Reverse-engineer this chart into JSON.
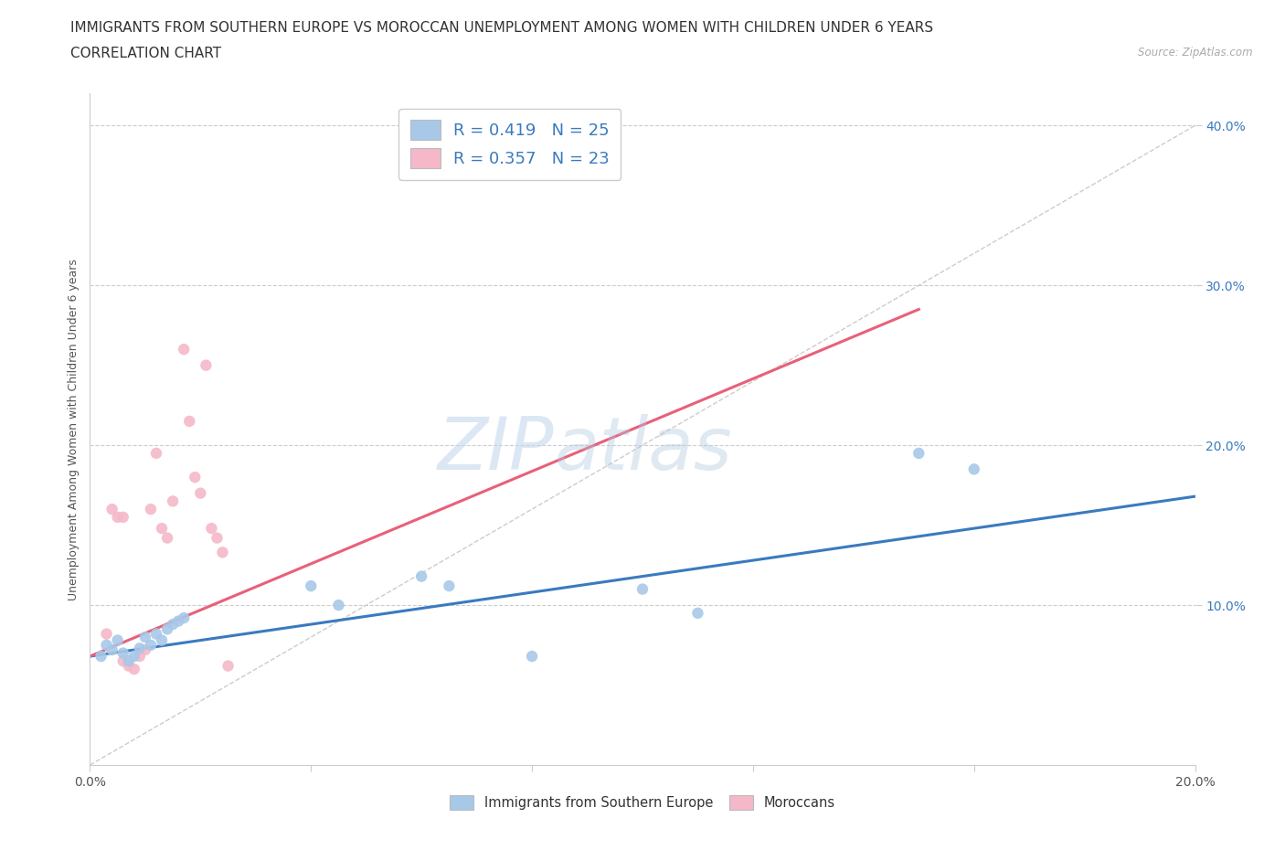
{
  "title_line1": "IMMIGRANTS FROM SOUTHERN EUROPE VS MOROCCAN UNEMPLOYMENT AMONG WOMEN WITH CHILDREN UNDER 6 YEARS",
  "title_line2": "CORRELATION CHART",
  "source": "Source: ZipAtlas.com",
  "ylabel": "Unemployment Among Women with Children Under 6 years",
  "xlim": [
    0.0,
    0.2
  ],
  "ylim": [
    0.0,
    0.42
  ],
  "blue_color": "#a8c8e8",
  "pink_color": "#f4b8c8",
  "blue_scatter": [
    [
      0.002,
      0.068
    ],
    [
      0.003,
      0.075
    ],
    [
      0.004,
      0.072
    ],
    [
      0.005,
      0.078
    ],
    [
      0.006,
      0.07
    ],
    [
      0.007,
      0.065
    ],
    [
      0.008,
      0.068
    ],
    [
      0.009,
      0.073
    ],
    [
      0.01,
      0.08
    ],
    [
      0.011,
      0.075
    ],
    [
      0.012,
      0.082
    ],
    [
      0.013,
      0.078
    ],
    [
      0.014,
      0.085
    ],
    [
      0.015,
      0.088
    ],
    [
      0.016,
      0.09
    ],
    [
      0.017,
      0.092
    ],
    [
      0.04,
      0.112
    ],
    [
      0.045,
      0.1
    ],
    [
      0.06,
      0.118
    ],
    [
      0.065,
      0.112
    ],
    [
      0.08,
      0.068
    ],
    [
      0.1,
      0.11
    ],
    [
      0.11,
      0.095
    ],
    [
      0.15,
      0.195
    ],
    [
      0.16,
      0.185
    ]
  ],
  "pink_scatter": [
    [
      0.003,
      0.082
    ],
    [
      0.004,
      0.16
    ],
    [
      0.005,
      0.155
    ],
    [
      0.006,
      0.065
    ],
    [
      0.007,
      0.062
    ],
    [
      0.008,
      0.06
    ],
    [
      0.009,
      0.068
    ],
    [
      0.01,
      0.072
    ],
    [
      0.011,
      0.16
    ],
    [
      0.012,
      0.195
    ],
    [
      0.013,
      0.148
    ],
    [
      0.014,
      0.142
    ],
    [
      0.015,
      0.165
    ],
    [
      0.017,
      0.26
    ],
    [
      0.018,
      0.215
    ],
    [
      0.019,
      0.18
    ],
    [
      0.02,
      0.17
    ],
    [
      0.021,
      0.25
    ],
    [
      0.022,
      0.148
    ],
    [
      0.023,
      0.142
    ],
    [
      0.024,
      0.133
    ],
    [
      0.025,
      0.062
    ],
    [
      0.006,
      0.155
    ]
  ],
  "blue_R": 0.419,
  "blue_N": 25,
  "pink_R": 0.357,
  "pink_N": 23,
  "blue_line_color": "#3a7abf",
  "pink_line_color": "#e8607a",
  "trend_line_blue": [
    0.0,
    0.2,
    0.068,
    0.168
  ],
  "trend_line_pink": [
    0.0,
    0.15,
    0.068,
    0.285
  ],
  "watermark_zip": "ZIP",
  "watermark_atlas": "atlas",
  "background_color": "#ffffff",
  "grid_color": "#cccccc",
  "title_fontsize": 11,
  "axis_label_fontsize": 9,
  "tick_fontsize": 10
}
